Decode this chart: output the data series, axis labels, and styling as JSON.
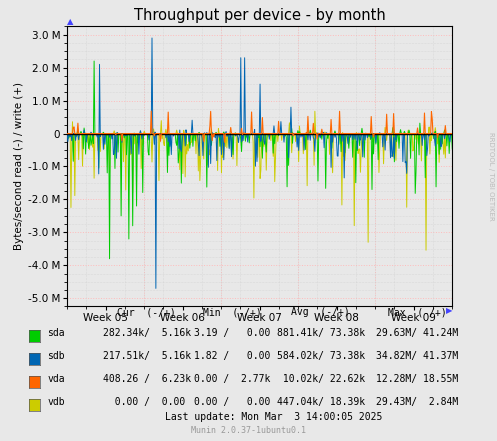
{
  "title": "Throughput per device - by month",
  "ylabel": "Bytes/second read (-) / write (+)",
  "background_color": "#e8e8e8",
  "plot_bg_color": "#e8e8e8",
  "x_ticks_labels": [
    "Week 05",
    "Week 06",
    "Week 07",
    "Week 08",
    "Week 09"
  ],
  "ylim": [
    -5250000,
    3250000
  ],
  "yticks": [
    -5000000,
    -4000000,
    -3000000,
    -2000000,
    -1000000,
    0,
    1000000,
    2000000,
    3000000
  ],
  "ytick_labels": [
    "-5.0 M",
    "-4.0 M",
    "-3.0 M",
    "-2.0 M",
    "-1.0 M",
    "0",
    "1.0 M",
    "2.0 M",
    "3.0 M"
  ],
  "colors": {
    "sda": "#00cc00",
    "sdb": "#0066b3",
    "vda": "#ff6600",
    "vdb": "#cccc00"
  },
  "legend_entries": [
    {
      "name": "sda",
      "color": "#00cc00",
      "cur": "282.34k/  5.16k",
      "min": "3.19 /   0.00",
      "avg": "881.41k/ 73.38k",
      "max": "29.63M/ 41.24M"
    },
    {
      "name": "sdb",
      "color": "#0066b3",
      "cur": "217.51k/  5.16k",
      "min": "1.82 /   0.00",
      "avg": "584.02k/ 73.38k",
      "max": "34.82M/ 41.37M"
    },
    {
      "name": "vda",
      "color": "#ff6600",
      "cur": "408.26 /  6.23k",
      "min": "0.00 /  2.77k",
      "avg": " 10.02k/ 22.62k",
      "max": "12.28M/ 18.55M"
    },
    {
      "name": "vdb",
      "color": "#cccc00",
      "cur": "  0.00 /  0.00 ",
      "min": "0.00 /   0.00",
      "avg": "447.04k/ 18.39k",
      "max": "29.43M/  2.84M"
    }
  ],
  "col_headers": [
    "Cur  (-/+)",
    "Min  (-/+)",
    "Avg  (-/+)",
    "Max  (-/+)"
  ],
  "footer": "Last update: Mon Mar  3 14:00:05 2025",
  "watermark": "Munin 2.0.37-1ubuntu0.1",
  "right_label": "RRDTOOL / TOBI OETIKER"
}
